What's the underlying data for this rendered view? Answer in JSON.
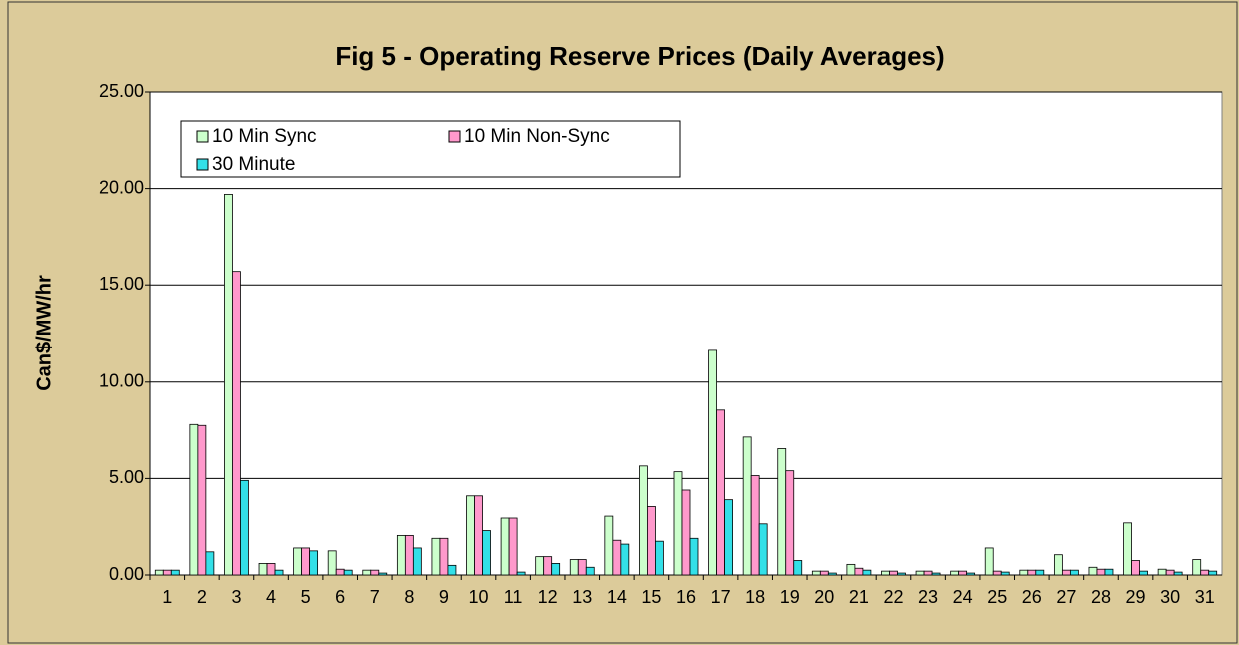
{
  "chart_data": {
    "type": "bar",
    "title": "Fig 5 - Operating Reserve Prices (Daily Averages)",
    "y_label": "Can$/MW/hr",
    "categories": [
      "1",
      "2",
      "3",
      "4",
      "5",
      "6",
      "7",
      "8",
      "9",
      "10",
      "11",
      "12",
      "13",
      "14",
      "15",
      "16",
      "17",
      "18",
      "19",
      "20",
      "21",
      "22",
      "23",
      "24",
      "25",
      "26",
      "27",
      "28",
      "29",
      "30",
      "31"
    ],
    "series": [
      {
        "name": "10 Min Sync",
        "color": "#ccffcc",
        "values": [
          0.25,
          7.8,
          19.7,
          0.6,
          1.4,
          1.25,
          0.25,
          2.05,
          1.9,
          4.1,
          2.95,
          0.95,
          0.8,
          3.05,
          5.65,
          5.35,
          11.65,
          7.15,
          6.55,
          0.2,
          0.55,
          0.2,
          0.2,
          0.2,
          1.4,
          0.25,
          1.05,
          0.4,
          2.7,
          0.3,
          0.8
        ]
      },
      {
        "name": "10 Min Non-Sync",
        "color": "#ff99cc",
        "values": [
          0.25,
          7.75,
          15.7,
          0.6,
          1.4,
          0.3,
          0.25,
          2.05,
          1.9,
          4.1,
          2.95,
          0.95,
          0.8,
          1.8,
          3.55,
          4.4,
          8.55,
          5.15,
          5.4,
          0.2,
          0.35,
          0.2,
          0.2,
          0.2,
          0.2,
          0.25,
          0.25,
          0.3,
          0.75,
          0.25,
          0.25
        ]
      },
      {
        "name": "30 Minute",
        "color": "#33e0e8",
        "values": [
          0.25,
          1.2,
          4.9,
          0.25,
          1.25,
          0.25,
          0.1,
          1.4,
          0.5,
          2.3,
          0.15,
          0.6,
          0.4,
          1.6,
          1.75,
          1.9,
          3.9,
          2.65,
          0.75,
          0.1,
          0.25,
          0.1,
          0.1,
          0.1,
          0.15,
          0.25,
          0.25,
          0.3,
          0.2,
          0.15,
          0.2
        ]
      }
    ],
    "ylim": [
      0,
      25
    ],
    "yticks": [
      {
        "value": 0,
        "label": "0.00"
      },
      {
        "value": 5,
        "label": "5.00"
      },
      {
        "value": 10,
        "label": "10.00"
      },
      {
        "value": 15,
        "label": "15.00"
      },
      {
        "value": 20,
        "label": "20.00"
      },
      {
        "value": 25,
        "label": "25.00"
      }
    ],
    "grid": true
  }
}
